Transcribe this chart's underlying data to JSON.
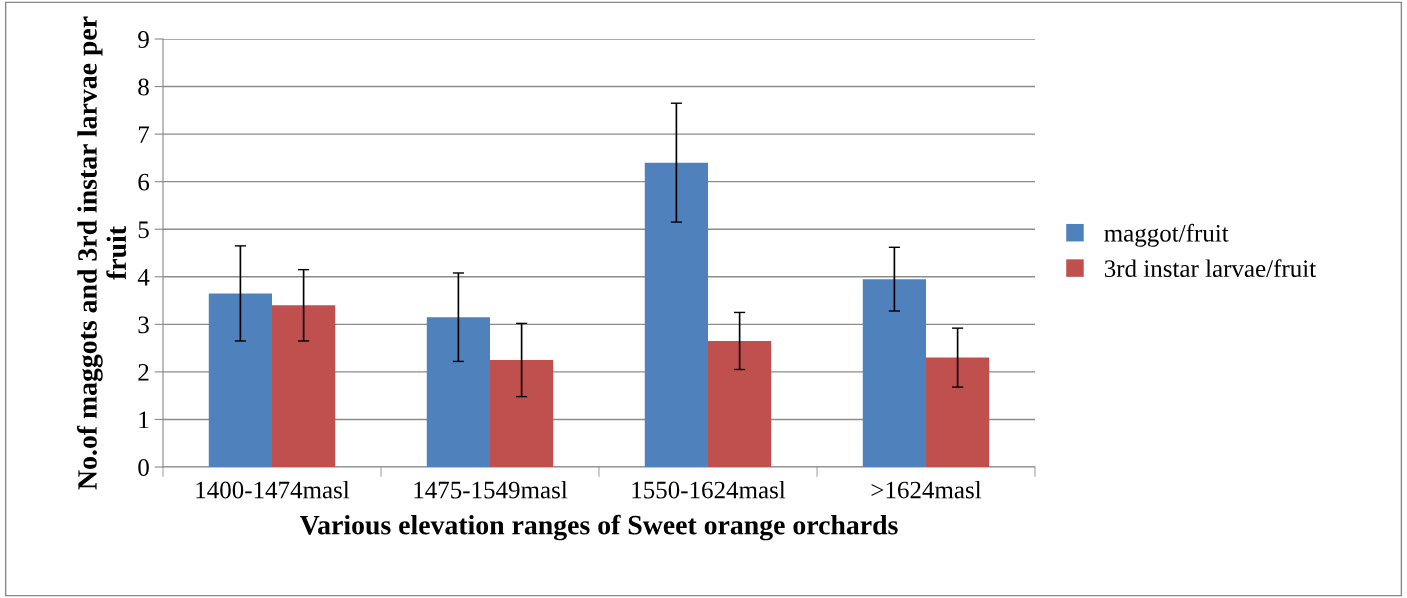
{
  "chart_data": {
    "type": "bar",
    "xlabel": "Various elevation ranges of Sweet orange orchards",
    "ylabel": "No.of maggots and 3rd instar larvae per fruit",
    "categories": [
      "1400-1474masl",
      "1475-1549masl",
      "1550-1624masl",
      ">1624masl"
    ],
    "series": [
      {
        "name": "maggot/fruit",
        "color": "#4f81bd",
        "values": [
          3.65,
          3.15,
          6.4,
          3.95
        ],
        "errors": [
          1.0,
          0.93,
          1.25,
          0.67
        ]
      },
      {
        "name": "3rd instar larvae/fruit",
        "color": "#c0504d",
        "values": [
          3.4,
          2.25,
          2.65,
          2.3
        ],
        "errors": [
          0.75,
          0.77,
          0.6,
          0.62
        ]
      }
    ],
    "ylim": [
      0,
      9
    ],
    "yticks": [
      0,
      1,
      2,
      3,
      4,
      5,
      6,
      7,
      8,
      9
    ],
    "grid": "y",
    "legend": "right"
  }
}
